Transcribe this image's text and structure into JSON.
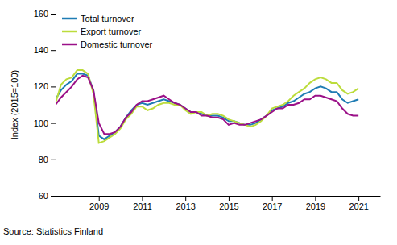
{
  "chart_data": {
    "type": "line",
    "y_label": "Index (2015=100)",
    "source": "Source: Statistics Finland",
    "x": [
      2007.0,
      2007.25,
      2007.5,
      2007.75,
      2008.0,
      2008.25,
      2008.5,
      2008.75,
      2009.0,
      2009.25,
      2009.5,
      2009.75,
      2010.0,
      2010.25,
      2010.5,
      2010.75,
      2011.0,
      2011.25,
      2011.5,
      2011.75,
      2012.0,
      2012.25,
      2012.5,
      2012.75,
      2013.0,
      2013.25,
      2013.5,
      2013.75,
      2014.0,
      2014.25,
      2014.5,
      2014.75,
      2015.0,
      2015.25,
      2015.5,
      2015.75,
      2016.0,
      2016.25,
      2016.5,
      2016.75,
      2017.0,
      2017.25,
      2017.5,
      2017.75,
      2018.0,
      2018.25,
      2018.5,
      2018.75,
      2019.0,
      2019.25,
      2019.5,
      2019.75,
      2020.0,
      2020.25,
      2020.5,
      2020.75,
      2021.0
    ],
    "series": [
      {
        "name": "Total turnover",
        "color": "#1f7cb4",
        "values": [
          113,
          118,
          121,
          123,
          127,
          127,
          126,
          118,
          93,
          91,
          93,
          95,
          98,
          103,
          107,
          110,
          111,
          110,
          111,
          112,
          113,
          112,
          111,
          110,
          108,
          106,
          106,
          105,
          104,
          104,
          104,
          103,
          101,
          101,
          100,
          99,
          99,
          100,
          102,
          104,
          107,
          108,
          109,
          111,
          112,
          114,
          116,
          117,
          119,
          120,
          119,
          117,
          117,
          113,
          111,
          112,
          113
        ]
      },
      {
        "name": "Export turnover",
        "color": "#bcdc3c",
        "values": [
          111,
          121,
          124,
          125,
          129,
          129,
          127,
          116,
          89,
          90,
          92,
          94,
          97,
          102,
          105,
          109,
          109,
          107,
          108,
          110,
          111,
          111,
          110,
          110,
          107,
          105,
          106,
          106,
          104,
          105,
          105,
          104,
          102,
          101,
          100,
          99,
          98,
          99,
          101,
          104,
          108,
          109,
          110,
          112,
          115,
          117,
          119,
          122,
          124,
          125,
          124,
          122,
          122,
          118,
          116,
          117,
          119
        ]
      },
      {
        "name": "Domestic turnover",
        "color": "#9b1088",
        "values": [
          110,
          114,
          117,
          120,
          124,
          126,
          125,
          118,
          100,
          94,
          94,
          95,
          98,
          103,
          106,
          110,
          112,
          112,
          113,
          114,
          115,
          113,
          111,
          110,
          108,
          106,
          106,
          104,
          104,
          103,
          103,
          102,
          99,
          100,
          99,
          99,
          100,
          101,
          102,
          104,
          106,
          108,
          108,
          110,
          110,
          111,
          113,
          113,
          115,
          115,
          114,
          113,
          112,
          108,
          105,
          104,
          104
        ]
      }
    ],
    "xlim": [
      2007,
      2022
    ],
    "ylim": [
      60,
      160
    ],
    "xticks": [
      2009,
      2011,
      2013,
      2015,
      2017,
      2019,
      2021
    ],
    "yticks": [
      60,
      80,
      100,
      120,
      140,
      160
    ],
    "grid": false,
    "legend": "top-left"
  }
}
